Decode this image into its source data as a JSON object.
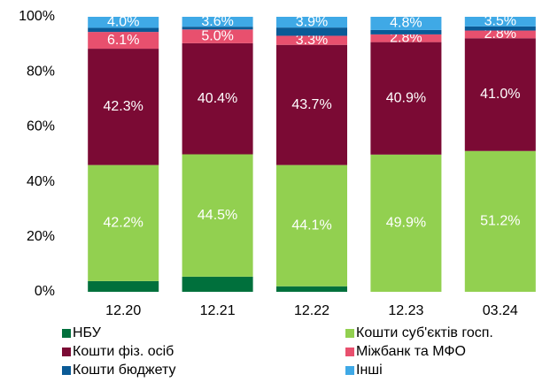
{
  "chart_data": {
    "type": "stacked_bar",
    "categories": [
      "12.20",
      "12.21",
      "12.22",
      "12.23",
      "03.24"
    ],
    "ylim": [
      0,
      100
    ],
    "yticks": [
      {
        "value": 0,
        "label": "0%"
      },
      {
        "value": 20,
        "label": "20%"
      },
      {
        "value": 40,
        "label": "40%"
      },
      {
        "value": 60,
        "label": "60%"
      },
      {
        "value": 80,
        "label": "80%"
      },
      {
        "value": 100,
        "label": "100%"
      }
    ],
    "series": [
      {
        "name": "НБУ",
        "color": "#00703c",
        "values": [
          3.9,
          5.5,
          2.0,
          0,
          0
        ]
      },
      {
        "name": "Кошти суб'єктів госп.",
        "color": "#92d050",
        "values": [
          42.2,
          44.5,
          44.1,
          49.9,
          51.2
        ],
        "value_labels": [
          "42.2%",
          "44.5%",
          "44.1%",
          "49.9%",
          "51.2%"
        ]
      },
      {
        "name": "Кошти фіз. осіб",
        "color": "#7b0a34",
        "values": [
          42.3,
          40.4,
          43.7,
          40.9,
          41.0
        ],
        "value_labels": [
          "42.3%",
          "40.4%",
          "43.7%",
          "40.9%",
          "41.0%"
        ]
      },
      {
        "name": "Міжбанк та МФО",
        "color": "#e8506e",
        "values": [
          6.1,
          5.0,
          3.3,
          2.8,
          2.8
        ],
        "value_labels": [
          "6.1%",
          "5.0%",
          "3.3%",
          "2.8%",
          "2.8%"
        ]
      },
      {
        "name": "Кошти бюджету",
        "color": "#0a5a96",
        "values": [
          1.5,
          1.0,
          3.0,
          1.6,
          1.5
        ]
      },
      {
        "name": "Інші",
        "color": "#3fa9e6",
        "values": [
          4.0,
          3.6,
          3.9,
          4.8,
          3.5
        ],
        "value_labels": [
          "4.0%",
          "3.6%",
          "3.9%",
          "4.8%",
          "3.5%"
        ]
      }
    ]
  }
}
